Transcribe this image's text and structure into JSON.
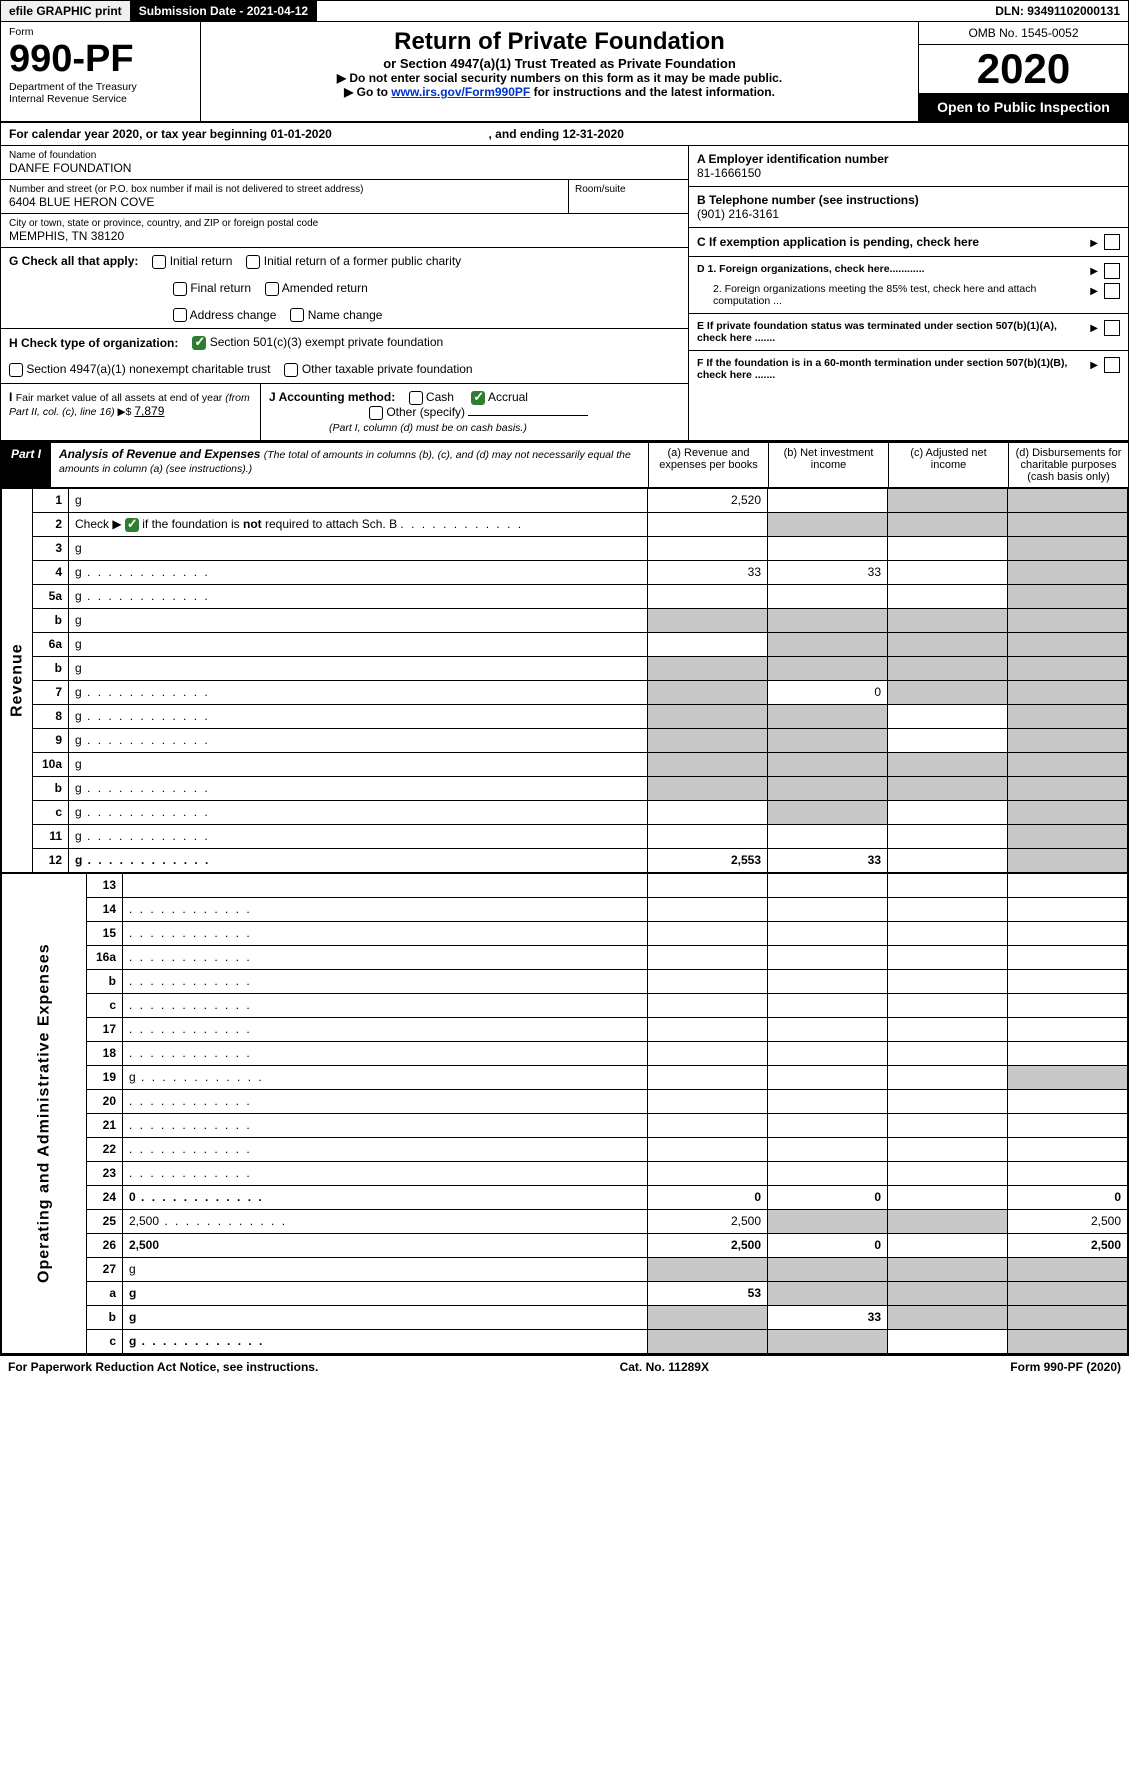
{
  "topbar": {
    "efile": "efile GRAPHIC print",
    "subdate": "Submission Date - 2021-04-12",
    "dln": "DLN: 93491102000131"
  },
  "header": {
    "form_label": "Form",
    "form_num": "990-PF",
    "dept1": "Department of the Treasury",
    "dept2": "Internal Revenue Service",
    "title": "Return of Private Foundation",
    "subtitle": "or Section 4947(a)(1) Trust Treated as Private Foundation",
    "bullet1_pre": "▶ Do not enter social security numbers on this form as it may be made public.",
    "bullet2_pre": "▶ Go to ",
    "bullet2_link": "www.irs.gov/Form990PF",
    "bullet2_post": " for instructions and the latest information.",
    "omb": "OMB No. 1545-0052",
    "year": "2020",
    "open_inspect": "Open to Public Inspection"
  },
  "calendar": {
    "text_a": "For calendar year 2020, or tax year beginning 01-01-2020",
    "text_b": ", and ending 12-31-2020"
  },
  "infoL": {
    "name_lbl": "Name of foundation",
    "name": "DANFE FOUNDATION",
    "addr_lbl": "Number and street (or P.O. box number if mail is not delivered to street address)",
    "addr": "6404 BLUE HERON COVE",
    "room_lbl": "Room/suite",
    "city_lbl": "City or town, state or province, country, and ZIP or foreign postal code",
    "city": "MEMPHIS, TN  38120"
  },
  "infoR": {
    "a_lbl": "A Employer identification number",
    "a_val": "81-1666150",
    "b_lbl": "B Telephone number (see instructions)",
    "b_val": "(901) 216-3161",
    "c_lbl": "C If exemption application is pending, check here",
    "d1_lbl": "D 1. Foreign organizations, check here............",
    "d2_lbl": "2. Foreign organizations meeting the 85% test, check here and attach computation ...",
    "e_lbl": "E  If private foundation status was terminated under section 507(b)(1)(A), check here .......",
    "f_lbl": "F  If the foundation is in a 60-month termination under section 507(b)(1)(B), check here .......",
    "arrow": "▶"
  },
  "g": {
    "lbl": "G Check all that apply:",
    "o1": "Initial return",
    "o2": "Initial return of a former public charity",
    "o3": "Final return",
    "o4": "Amended return",
    "o5": "Address change",
    "o6": "Name change"
  },
  "h": {
    "lbl": "H Check type of organization:",
    "o1": "Section 501(c)(3) exempt private foundation",
    "o2": "Section 4947(a)(1) nonexempt charitable trust",
    "o3": "Other taxable private foundation"
  },
  "i": {
    "lbl": "I Fair market value of all assets at end of year (from Part II, col. (c), line 16) ▶$  ",
    "val": "7,879"
  },
  "j": {
    "lbl": "J Accounting method:",
    "o1": "Cash",
    "o2": "Accrual",
    "o3": "Other (specify)",
    "note": "(Part I, column (d) must be on cash basis.)"
  },
  "part1": {
    "label": "Part I",
    "title": "Analysis of Revenue and Expenses ",
    "sub": "(The total of amounts in columns (b), (c), and (d) may not necessarily equal the amounts in column (a) (see instructions).)",
    "col_a": "(a)   Revenue and expenses per books",
    "col_b": "(b)  Net investment income",
    "col_c": "(c)  Adjusted net income",
    "col_d": "(d)  Disbursements for charitable purposes (cash basis only)"
  },
  "vert": {
    "revenue": "Revenue",
    "expenses": "Operating and Administrative Expenses"
  },
  "rows": [
    {
      "n": "1",
      "d": "g",
      "a": "2,520",
      "b": "",
      "c": "g"
    },
    {
      "n": "2",
      "d": "g",
      "a": "",
      "b": "g",
      "c": "g",
      "nowrap": true
    },
    {
      "n": "3",
      "d": "g",
      "a": "",
      "b": "",
      "c": ""
    },
    {
      "n": "4",
      "d": "g",
      "a": "33",
      "b": "33",
      "c": "",
      "dots": true
    },
    {
      "n": "5a",
      "d": "g",
      "a": "",
      "b": "",
      "c": "",
      "dots": true
    },
    {
      "n": "b",
      "d": "g",
      "a": "g",
      "b": "g",
      "c": "g"
    },
    {
      "n": "6a",
      "d": "g",
      "a": "",
      "b": "g",
      "c": "g"
    },
    {
      "n": "b",
      "d": "g",
      "a": "g",
      "b": "g",
      "c": "g"
    },
    {
      "n": "7",
      "d": "g",
      "a": "g",
      "b": "0",
      "c": "g",
      "dots": true
    },
    {
      "n": "8",
      "d": "g",
      "a": "g",
      "b": "g",
      "c": "",
      "dots": true
    },
    {
      "n": "9",
      "d": "g",
      "a": "g",
      "b": "g",
      "c": "",
      "dots": true
    },
    {
      "n": "10a",
      "d": "g",
      "a": "g",
      "b": "g",
      "c": "g"
    },
    {
      "n": "b",
      "d": "g",
      "a": "g",
      "b": "g",
      "c": "g",
      "dots": true
    },
    {
      "n": "c",
      "d": "g",
      "a": "",
      "b": "g",
      "c": "",
      "dots": true
    },
    {
      "n": "11",
      "d": "g",
      "a": "",
      "b": "",
      "c": "",
      "dots": true
    },
    {
      "n": "12",
      "d": "g",
      "a": "2,553",
      "b": "33",
      "c": "",
      "dots": true,
      "bold": true
    }
  ],
  "rows2": [
    {
      "n": "13",
      "d": "",
      "a": "",
      "b": "",
      "c": ""
    },
    {
      "n": "14",
      "d": "",
      "a": "",
      "b": "",
      "c": "",
      "dots": true
    },
    {
      "n": "15",
      "d": "",
      "a": "",
      "b": "",
      "c": "",
      "dots": true
    },
    {
      "n": "16a",
      "d": "",
      "a": "",
      "b": "",
      "c": "",
      "dots": true
    },
    {
      "n": "b",
      "d": "",
      "a": "",
      "b": "",
      "c": "",
      "dots": true
    },
    {
      "n": "c",
      "d": "",
      "a": "",
      "b": "",
      "c": "",
      "dots": true
    },
    {
      "n": "17",
      "d": "",
      "a": "",
      "b": "",
      "c": "",
      "dots": true
    },
    {
      "n": "18",
      "d": "",
      "a": "",
      "b": "",
      "c": "",
      "dots": true
    },
    {
      "n": "19",
      "d": "g",
      "a": "",
      "b": "",
      "c": "",
      "dots": true
    },
    {
      "n": "20",
      "d": "",
      "a": "",
      "b": "",
      "c": "",
      "dots": true
    },
    {
      "n": "21",
      "d": "",
      "a": "",
      "b": "",
      "c": "",
      "dots": true
    },
    {
      "n": "22",
      "d": "",
      "a": "",
      "b": "",
      "c": "",
      "dots": true
    },
    {
      "n": "23",
      "d": "",
      "a": "",
      "b": "",
      "c": "",
      "dots": true
    },
    {
      "n": "24",
      "d": "0",
      "a": "0",
      "b": "0",
      "c": "",
      "dots": true,
      "bold": true
    },
    {
      "n": "25",
      "d": "2,500",
      "a": "2,500",
      "b": "g",
      "c": "g",
      "dots": true
    },
    {
      "n": "26",
      "d": "2,500",
      "a": "2,500",
      "b": "0",
      "c": "",
      "bold": true
    }
  ],
  "rows3": [
    {
      "n": "27",
      "d": "g",
      "a": "g",
      "b": "g",
      "c": "g"
    },
    {
      "n": "a",
      "d": "g",
      "a": "53",
      "b": "g",
      "c": "g",
      "bold": true
    },
    {
      "n": "b",
      "d": "g",
      "a": "g",
      "b": "33",
      "c": "g",
      "bold": true
    },
    {
      "n": "c",
      "d": "g",
      "a": "g",
      "b": "g",
      "c": "",
      "bold": true,
      "dots": true
    }
  ],
  "footer": {
    "left": "For Paperwork Reduction Act Notice, see instructions.",
    "mid": "Cat. No. 11289X",
    "right": "Form 990-PF (2020)"
  }
}
